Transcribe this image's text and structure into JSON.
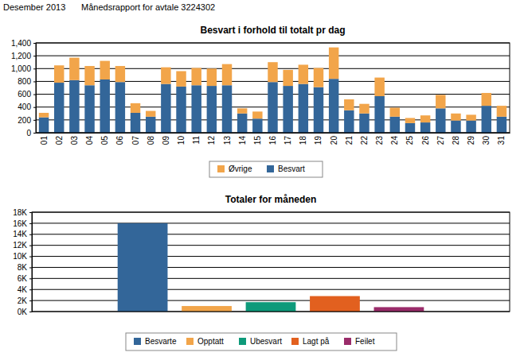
{
  "header": {
    "date": "Desember 2013",
    "title": "Månedsrapport for avtale 3224302"
  },
  "chart_data": [
    {
      "type": "bar",
      "title": "Besvart i forhold til totalt pr dag",
      "categories": [
        "01",
        "02",
        "03",
        "04",
        "05",
        "06",
        "07",
        "08",
        "09",
        "10",
        "11",
        "12",
        "13",
        "14",
        "15",
        "16",
        "17",
        "18",
        "19",
        "20",
        "21",
        "22",
        "23",
        "24",
        "25",
        "26",
        "27",
        "28",
        "29",
        "30",
        "31"
      ],
      "series": [
        {
          "name": "Besvart",
          "color": "#336699",
          "values": [
            240,
            780,
            820,
            740,
            830,
            790,
            310,
            250,
            760,
            720,
            740,
            730,
            740,
            300,
            220,
            790,
            730,
            760,
            710,
            840,
            350,
            300,
            570,
            250,
            150,
            160,
            380,
            190,
            190,
            420,
            250
          ]
        },
        {
          "name": "Øvrige",
          "color": "#f2a54a",
          "values": [
            70,
            270,
            350,
            300,
            290,
            250,
            150,
            90,
            260,
            240,
            270,
            270,
            330,
            80,
            110,
            310,
            250,
            300,
            300,
            490,
            170,
            150,
            290,
            140,
            80,
            110,
            210,
            110,
            90,
            200,
            170
          ]
        }
      ],
      "stacked": true,
      "ylim": [
        0,
        1400
      ],
      "yticks": [
        0,
        200,
        400,
        600,
        800,
        {
          "value": 1000,
          "label": "1,000"
        },
        {
          "value": 1200,
          "label": "1,200"
        },
        {
          "value": 1400,
          "label": "1,400"
        }
      ],
      "grid": true,
      "legend": "bottom"
    },
    {
      "type": "bar",
      "title": "Totaler for måneden",
      "categories": [
        "Besvarte",
        "Opptatt",
        "Ubesvart",
        "Lagt på",
        "Feilet"
      ],
      "values": [
        16000,
        1000,
        1700,
        2800,
        800
      ],
      "colors": [
        "#336699",
        "#f2a54a",
        "#0e9a7a",
        "#e2601f",
        "#9a2c6a"
      ],
      "ylim": [
        0,
        18000
      ],
      "yticks": [
        {
          "value": 0,
          "label": "0K"
        },
        {
          "value": 2000,
          "label": "2K"
        },
        {
          "value": 4000,
          "label": "4K"
        },
        {
          "value": 6000,
          "label": "6K"
        },
        {
          "value": 8000,
          "label": "8K"
        },
        {
          "value": 10000,
          "label": "10K"
        },
        {
          "value": 12000,
          "label": "12K"
        },
        {
          "value": 14000,
          "label": "14K"
        },
        {
          "value": 16000,
          "label": "16K"
        },
        {
          "value": 18000,
          "label": "18K"
        }
      ],
      "grid": true,
      "legend": "bottom",
      "tick_labels": "y"
    }
  ]
}
